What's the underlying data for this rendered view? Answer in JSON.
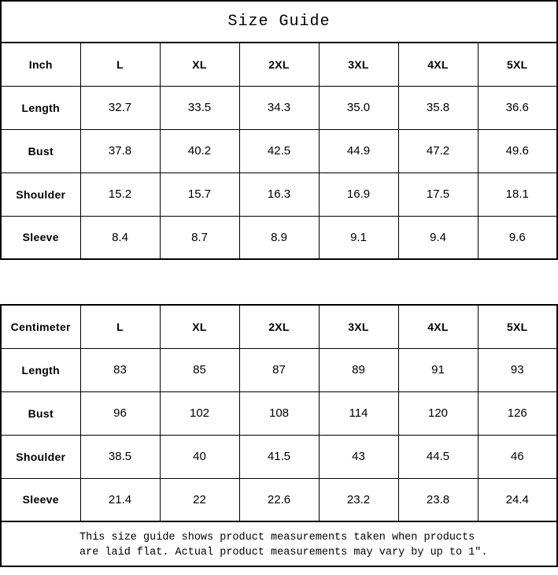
{
  "title": "Size Guide",
  "colors": {
    "background": "#ffffff",
    "line": "#000000",
    "text": "#000000"
  },
  "chart_data": [
    {
      "type": "table",
      "title": "Size Guide",
      "unit": "Inch",
      "columns": [
        "Inch",
        "L",
        "XL",
        "2XL",
        "3XL",
        "4XL",
        "5XL"
      ],
      "rows": [
        [
          "Length",
          "32.7",
          "33.5",
          "34.3",
          "35.0",
          "35.8",
          "36.6"
        ],
        [
          "Bust",
          "37.8",
          "40.2",
          "42.5",
          "44.9",
          "47.2",
          "49.6"
        ],
        [
          "Shoulder",
          "15.2",
          "15.7",
          "16.3",
          "16.9",
          "17.5",
          "18.1"
        ],
        [
          "Sleeve",
          "8.4",
          "8.7",
          "8.9",
          "9.1",
          "9.4",
          "9.6"
        ]
      ]
    },
    {
      "type": "table",
      "unit": "Centimeter",
      "columns": [
        "Centimeter",
        "L",
        "XL",
        "2XL",
        "3XL",
        "4XL",
        "5XL"
      ],
      "rows": [
        [
          "Length",
          "83",
          "85",
          "87",
          "89",
          "91",
          "93"
        ],
        [
          "Bust",
          "96",
          "102",
          "108",
          "114",
          "120",
          "126"
        ],
        [
          "Shoulder",
          "38.5",
          "40",
          "41.5",
          "43",
          "44.5",
          "46"
        ],
        [
          "Sleeve",
          "21.4",
          "22",
          "22.6",
          "23.2",
          "23.8",
          "24.4"
        ]
      ]
    }
  ],
  "footer": {
    "line1": "This size guide shows product measurements taken when products",
    "line2": "are laid flat. Actual product measurements may vary by up to 1″."
  }
}
